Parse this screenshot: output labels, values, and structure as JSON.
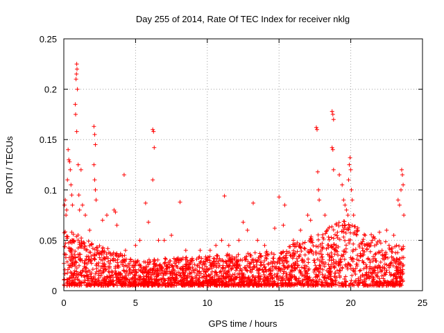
{
  "chart_data": {
    "type": "scatter",
    "title": "Day 255 of 2014, Rate Of TEC Index for receiver nklg",
    "xlabel": "GPS time / hours",
    "ylabel": "ROTI / TECUs",
    "xlim": [
      0,
      25
    ],
    "ylim": [
      0,
      0.25
    ],
    "xticks": [
      0,
      5,
      10,
      15,
      20,
      25
    ],
    "xtick_labels": [
      "0",
      "5",
      "10",
      "15",
      "20",
      "25"
    ],
    "yticks": [
      0,
      0.05,
      0.1,
      0.15,
      0.2,
      0.25
    ],
    "ytick_labels": [
      "0",
      "0.05",
      "0.1",
      "0.15",
      "0.2",
      "0.25"
    ],
    "grid": true,
    "marker": "+",
    "marker_color": "#ff0000",
    "series": [
      {
        "name": "ROTI",
        "points": [
          [
            0.05,
            0.085
          ],
          [
            0.1,
            0.09
          ],
          [
            0.15,
            0.075
          ],
          [
            0.2,
            0.08
          ],
          [
            0.25,
            0.11
          ],
          [
            0.3,
            0.14
          ],
          [
            0.35,
            0.13
          ],
          [
            0.4,
            0.128
          ],
          [
            0.45,
            0.12
          ],
          [
            0.5,
            0.105
          ],
          [
            0.55,
            0.095
          ],
          [
            0.6,
            0.085
          ],
          [
            0.7,
            0.05
          ],
          [
            0.8,
            0.185
          ],
          [
            0.82,
            0.175
          ],
          [
            0.85,
            0.21
          ],
          [
            0.88,
            0.215
          ],
          [
            0.9,
            0.225
          ],
          [
            0.92,
            0.22
          ],
          [
            0.95,
            0.2
          ],
          [
            0.9,
            0.158
          ],
          [
            1.0,
            0.125
          ],
          [
            1.05,
            0.095
          ],
          [
            1.1,
            0.08
          ],
          [
            1.2,
            0.12
          ],
          [
            1.3,
            0.085
          ],
          [
            1.5,
            0.075
          ],
          [
            1.8,
            0.06
          ],
          [
            2.1,
            0.163
          ],
          [
            2.15,
            0.155
          ],
          [
            2.2,
            0.145
          ],
          [
            2.1,
            0.125
          ],
          [
            2.15,
            0.11
          ],
          [
            2.2,
            0.1
          ],
          [
            2.25,
            0.09
          ],
          [
            2.7,
            0.07
          ],
          [
            3.0,
            0.075
          ],
          [
            3.5,
            0.08
          ],
          [
            3.6,
            0.078
          ],
          [
            3.7,
            0.065
          ],
          [
            4.2,
            0.115
          ],
          [
            4.3,
            0.04
          ],
          [
            5.0,
            0.045
          ],
          [
            5.3,
            0.05
          ],
          [
            5.7,
            0.087
          ],
          [
            5.9,
            0.068
          ],
          [
            6.2,
            0.16
          ],
          [
            6.25,
            0.158
          ],
          [
            6.3,
            0.142
          ],
          [
            6.2,
            0.11
          ],
          [
            6.6,
            0.05
          ],
          [
            7.0,
            0.05
          ],
          [
            7.5,
            0.055
          ],
          [
            8.1,
            0.088
          ],
          [
            8.5,
            0.04
          ],
          [
            9.5,
            0.04
          ],
          [
            10.2,
            0.04
          ],
          [
            10.6,
            0.045
          ],
          [
            11.0,
            0.05
          ],
          [
            11.2,
            0.094
          ],
          [
            11.5,
            0.045
          ],
          [
            12.2,
            0.05
          ],
          [
            12.5,
            0.068
          ],
          [
            12.8,
            0.06
          ],
          [
            13.2,
            0.087
          ],
          [
            13.5,
            0.05
          ],
          [
            14.0,
            0.045
          ],
          [
            14.7,
            0.062
          ],
          [
            15.0,
            0.093
          ],
          [
            15.3,
            0.065
          ],
          [
            15.4,
            0.085
          ],
          [
            16.0,
            0.05
          ],
          [
            16.5,
            0.06
          ],
          [
            17.0,
            0.075
          ],
          [
            17.2,
            0.07
          ],
          [
            17.6,
            0.162
          ],
          [
            17.65,
            0.16
          ],
          [
            17.7,
            0.118
          ],
          [
            17.75,
            0.1
          ],
          [
            17.8,
            0.09
          ],
          [
            18.2,
            0.075
          ],
          [
            18.7,
            0.178
          ],
          [
            18.75,
            0.175
          ],
          [
            18.8,
            0.17
          ],
          [
            18.7,
            0.142
          ],
          [
            18.75,
            0.14
          ],
          [
            18.8,
            0.12
          ],
          [
            19.2,
            0.115
          ],
          [
            19.4,
            0.105
          ],
          [
            19.5,
            0.09
          ],
          [
            19.6,
            0.085
          ],
          [
            19.7,
            0.08
          ],
          [
            19.8,
            0.075
          ],
          [
            19.85,
            0.11
          ],
          [
            19.9,
            0.125
          ],
          [
            19.95,
            0.132
          ],
          [
            20.0,
            0.12
          ],
          [
            20.05,
            0.1
          ],
          [
            20.1,
            0.09
          ],
          [
            20.2,
            0.075
          ],
          [
            20.5,
            0.06
          ],
          [
            21.0,
            0.055
          ],
          [
            21.5,
            0.05
          ],
          [
            22.0,
            0.058
          ],
          [
            22.5,
            0.06
          ],
          [
            23.0,
            0.055
          ],
          [
            23.3,
            0.09
          ],
          [
            23.4,
            0.085
          ],
          [
            23.5,
            0.1
          ],
          [
            23.55,
            0.12
          ],
          [
            23.6,
            0.115
          ],
          [
            23.65,
            0.105
          ],
          [
            23.7,
            0.075
          ]
        ],
        "baseline_band": {
          "x_range": [
            0,
            23.7
          ],
          "typical_min": 0.005,
          "typical_max": 0.04,
          "note_values": [
            {
              "x": 0.5,
              "max": 0.06
            },
            {
              "x": 5,
              "max": 0.03
            },
            {
              "x": 10,
              "max": 0.035
            },
            {
              "x": 15,
              "max": 0.04
            },
            {
              "x": 19.5,
              "max": 0.07
            },
            {
              "x": 23,
              "max": 0.045
            }
          ]
        }
      }
    ]
  }
}
